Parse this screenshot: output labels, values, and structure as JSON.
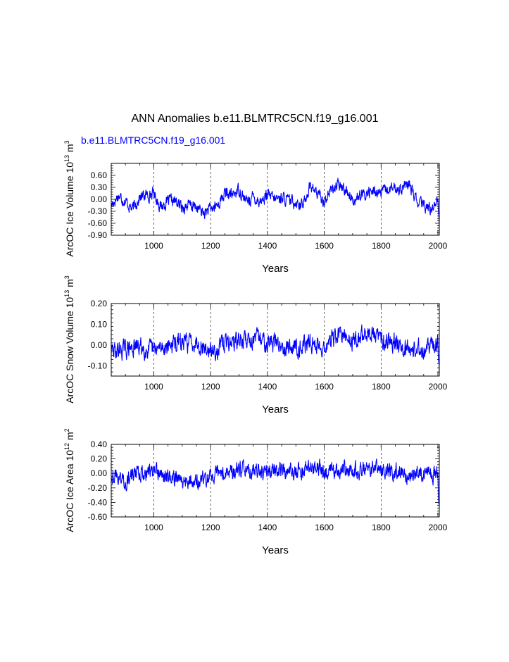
{
  "title": "ANN Anomalies b.e11.BLMTRC5CN.f19_g16.001",
  "colors": {
    "series": "#0000ff",
    "axis": "#000000",
    "grid": "#000000",
    "case_label": "#0000ff"
  },
  "chart_data": [
    {
      "type": "line",
      "case_label": "b.e11.BLMTRC5CN.f19_g16.001",
      "ylabel": "ArcOC Ice Volume 10",
      "ylabel_exp": "13",
      "ylabel_unit": " m",
      "ylabel_unit_exp": "3",
      "xlabel": "Years",
      "xlim": [
        850,
        2005
      ],
      "ylim": [
        -0.9,
        0.9
      ],
      "yticks": [
        -0.9,
        -0.6,
        -0.3,
        0.0,
        0.3,
        0.6
      ],
      "ytick_labels": [
        "-0.90",
        "-0.60",
        "-0.30",
        "0.00",
        "0.30",
        "0.60"
      ],
      "xticks": [
        1000,
        1200,
        1400,
        1600,
        1800,
        2000
      ],
      "xtick_labels": [
        "1000",
        "1200",
        "1400",
        "1600",
        "1800",
        "2000"
      ],
      "grid_x": [
        1000,
        1200,
        1400,
        1600,
        1800
      ],
      "series": [
        {
          "name": "b.e11.BLMTRC5CN.f19_g16.001",
          "approximation": "noisy signal following visible trend",
          "trend_years": [
            850,
            875,
            900,
            925,
            950,
            975,
            1000,
            1025,
            1050,
            1075,
            1100,
            1125,
            1150,
            1175,
            1200,
            1225,
            1250,
            1275,
            1300,
            1325,
            1350,
            1375,
            1400,
            1425,
            1450,
            1475,
            1500,
            1525,
            1550,
            1575,
            1600,
            1625,
            1650,
            1675,
            1700,
            1725,
            1750,
            1775,
            1800,
            1825,
            1850,
            1875,
            1900,
            1925,
            1950,
            1975,
            2000,
            2005
          ],
          "trend_values": [
            -0.15,
            0.1,
            -0.05,
            -0.25,
            0.05,
            0.1,
            0.15,
            -0.2,
            -0.05,
            -0.05,
            -0.2,
            -0.15,
            -0.2,
            -0.35,
            -0.25,
            -0.15,
            0.15,
            0.1,
            0.25,
            -0.05,
            0.05,
            -0.05,
            0.1,
            0.0,
            0.05,
            -0.05,
            -0.05,
            -0.15,
            0.35,
            0.15,
            -0.05,
            0.25,
            0.35,
            0.25,
            0.0,
            0.05,
            0.15,
            0.2,
            0.15,
            0.25,
            0.25,
            0.3,
            0.35,
            -0.05,
            -0.15,
            -0.25,
            0.05,
            -0.7
          ],
          "noise": 0.12,
          "seed": 17
        }
      ]
    },
    {
      "type": "line",
      "ylabel": "ArcOC Snow Volume 10",
      "ylabel_exp": "13",
      "ylabel_unit": " m",
      "ylabel_unit_exp": "3",
      "xlabel": "Years",
      "xlim": [
        850,
        2005
      ],
      "ylim": [
        -0.15,
        0.2
      ],
      "yticks": [
        -0.1,
        0.0,
        0.1,
        0.2
      ],
      "ytick_labels": [
        "-0.10",
        "0.00",
        "0.10",
        "0.20"
      ],
      "xticks": [
        1000,
        1200,
        1400,
        1600,
        1800,
        2000
      ],
      "xtick_labels": [
        "1000",
        "1200",
        "1400",
        "1600",
        "1800",
        "2000"
      ],
      "grid_x": [
        1000,
        1200,
        1400,
        1600,
        1800
      ],
      "series": [
        {
          "name": "b.e11.BLMTRC5CN.f19_g16.001",
          "approximation": "noisy signal following visible trend",
          "trend_years": [
            850,
            900,
            950,
            1000,
            1050,
            1100,
            1150,
            1200,
            1250,
            1300,
            1350,
            1400,
            1450,
            1500,
            1550,
            1600,
            1650,
            1700,
            1750,
            1800,
            1850,
            1900,
            1950,
            2000,
            2005
          ],
          "trend_values": [
            -0.03,
            -0.02,
            -0.01,
            -0.03,
            0.0,
            0.01,
            0.02,
            -0.04,
            0.01,
            0.02,
            0.03,
            0.02,
            0.0,
            -0.01,
            0.01,
            -0.01,
            0.05,
            0.02,
            0.06,
            0.03,
            0.02,
            -0.02,
            -0.02,
            0.0,
            -0.13
          ],
          "noise": 0.035,
          "seed": 29
        }
      ]
    },
    {
      "type": "line",
      "ylabel": "ArcOC Ice Area 10",
      "ylabel_exp": "12",
      "ylabel_unit": " m",
      "ylabel_unit_exp": "2",
      "xlabel": "Years",
      "xlim": [
        850,
        2005
      ],
      "ylim": [
        -0.6,
        0.4
      ],
      "yticks": [
        -0.6,
        -0.4,
        -0.2,
        0.0,
        0.2,
        0.4
      ],
      "ytick_labels": [
        "-0.60",
        "-0.40",
        "-0.20",
        "0.00",
        "0.20",
        "0.40"
      ],
      "xticks": [
        1000,
        1200,
        1400,
        1600,
        1800,
        2000
      ],
      "xtick_labels": [
        "1000",
        "1200",
        "1400",
        "1600",
        "1800",
        "2000"
      ],
      "grid_x": [
        1000,
        1200,
        1400,
        1600,
        1800
      ],
      "series": [
        {
          "name": "b.e11.BLMTRC5CN.f19_g16.001",
          "approximation": "noisy signal following visible trend",
          "trend_years": [
            850,
            900,
            950,
            1000,
            1050,
            1100,
            1150,
            1200,
            1250,
            1300,
            1350,
            1400,
            1450,
            1500,
            1550,
            1600,
            1650,
            1700,
            1750,
            1800,
            1850,
            1900,
            1950,
            2000,
            2005
          ],
          "trend_values": [
            0.0,
            -0.1,
            0.02,
            0.0,
            -0.05,
            -0.08,
            -0.12,
            -0.05,
            0.02,
            0.02,
            0.03,
            0.02,
            0.05,
            0.02,
            0.07,
            0.05,
            0.05,
            0.05,
            0.05,
            0.05,
            0.04,
            -0.02,
            -0.02,
            -0.02,
            -0.45
          ],
          "noise": 0.09,
          "seed": 43
        }
      ]
    }
  ]
}
